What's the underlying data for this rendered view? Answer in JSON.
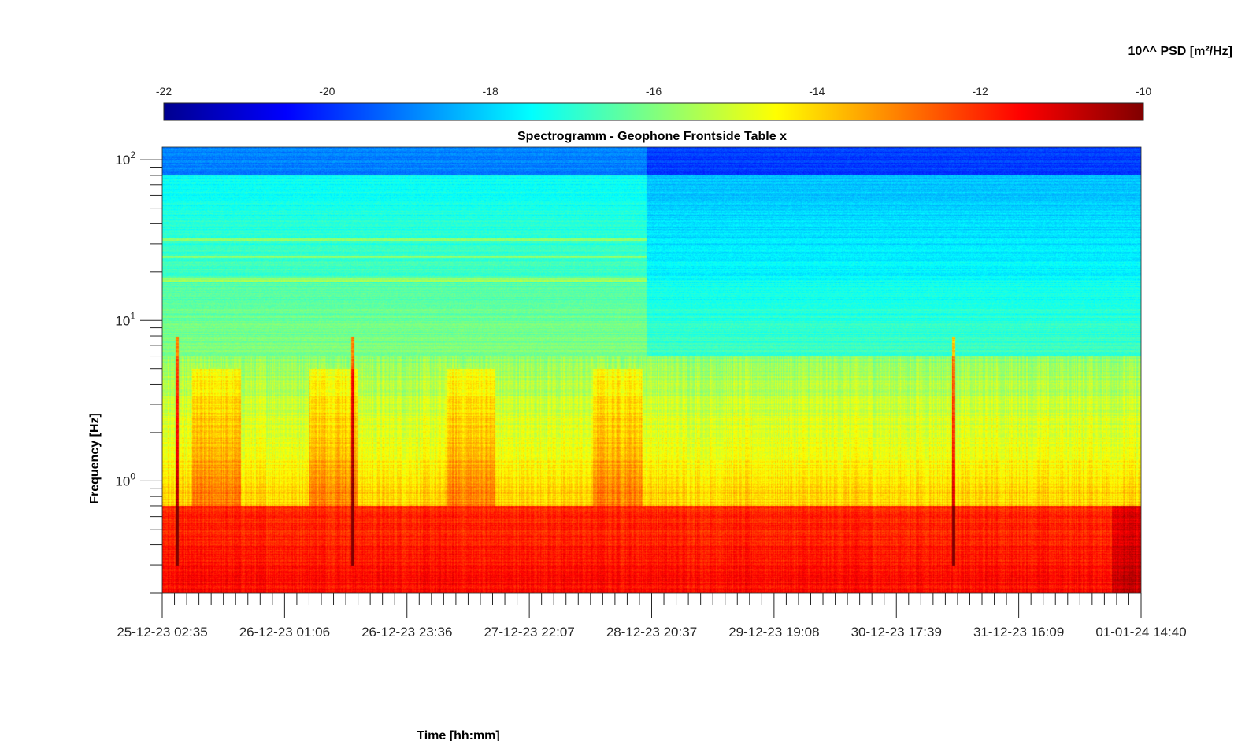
{
  "chart_data": {
    "type": "heatmap",
    "title": "Spectrogramm - Geophone Frontside Table x",
    "xlabel": "Time [hh:mm]",
    "ylabel": "Frequency [Hz]",
    "x_ticks": [
      "25-12-23 02:35",
      "26-12-23 01:06",
      "26-12-23 23:36",
      "27-12-23 22:07",
      "28-12-23 20:37",
      "29-12-23 19:08",
      "30-12-23 17:39",
      "31-12-23 16:09",
      "01-01-24 14:40"
    ],
    "y_scale": "log",
    "y_range_hz": [
      0.2,
      120
    ],
    "y_ticks": [
      {
        "base": "10",
        "exp": "0",
        "value": 1
      },
      {
        "base": "10",
        "exp": "1",
        "value": 10
      },
      {
        "base": "10",
        "exp": "2",
        "value": 100
      }
    ],
    "colorbar": {
      "label": "10^^ PSD [m²/Hz]",
      "ticks": [
        "-22",
        "-20",
        "-18",
        "-16",
        "-14",
        "-12",
        "-10"
      ],
      "range": [
        -22,
        -10
      ],
      "colormap": "jet",
      "placement": "top"
    },
    "features": {
      "regime_change_time_fraction": 0.494,
      "transient_events_time_fraction": [
        0.015,
        0.194,
        0.808
      ],
      "high_energy_band_hz": [
        0.2,
        0.7
      ],
      "moderate_band_hz": [
        0.7,
        6
      ],
      "quiet_band_hz": [
        6,
        120
      ],
      "active_periods_time_fraction": [
        [
          0.03,
          0.08
        ],
        [
          0.15,
          0.2
        ],
        [
          0.29,
          0.34
        ],
        [
          0.44,
          0.49
        ]
      ]
    }
  }
}
